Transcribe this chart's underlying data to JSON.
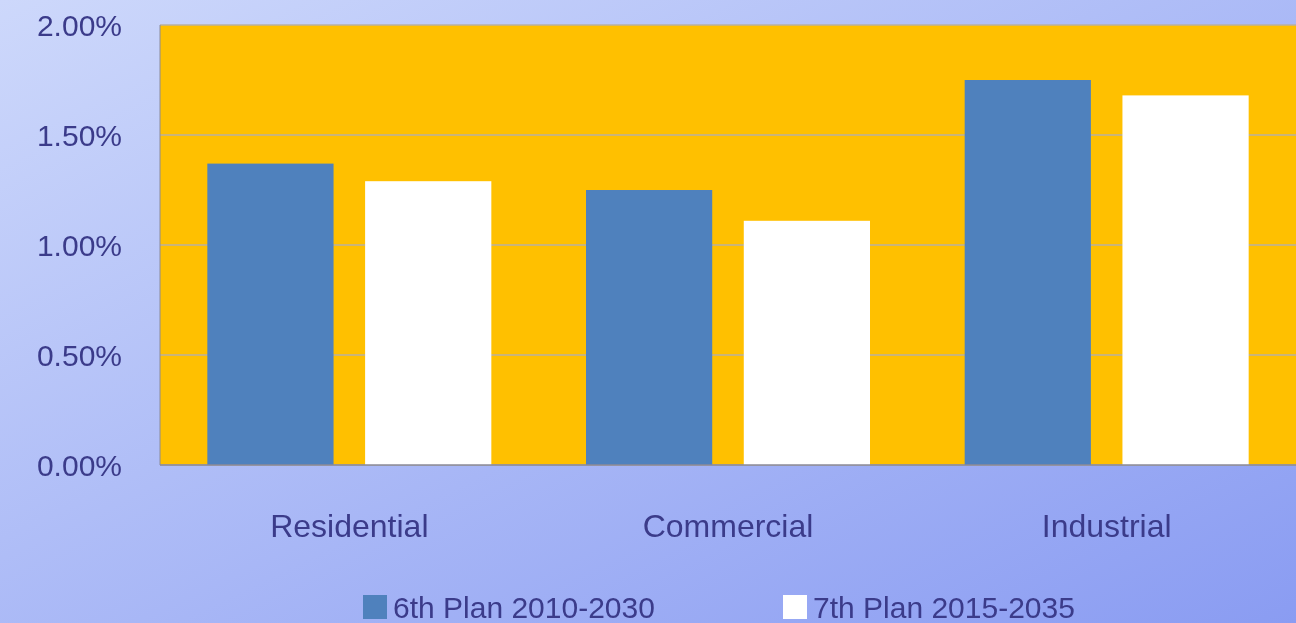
{
  "chart_data": {
    "type": "bar",
    "categories": [
      "Residential",
      "Commercial",
      "Industrial"
    ],
    "series": [
      {
        "name": "6th Plan 2010-2030",
        "color": "#4f81bd",
        "values": [
          1.37,
          1.25,
          1.75
        ]
      },
      {
        "name": "7th Plan 2015-2035",
        "color": "#ffffff",
        "values": [
          1.29,
          1.11,
          1.68
        ]
      }
    ],
    "ylim": [
      0,
      2
    ],
    "yticks": [
      {
        "value": 0,
        "label": "0.00%"
      },
      {
        "value": 0.5,
        "label": "0.50%"
      },
      {
        "value": 1,
        "label": "1.00%"
      },
      {
        "value": 1.5,
        "label": "1.50%"
      },
      {
        "value": 2,
        "label": "2.00%"
      }
    ],
    "grid": "y",
    "legend": "bottom"
  }
}
